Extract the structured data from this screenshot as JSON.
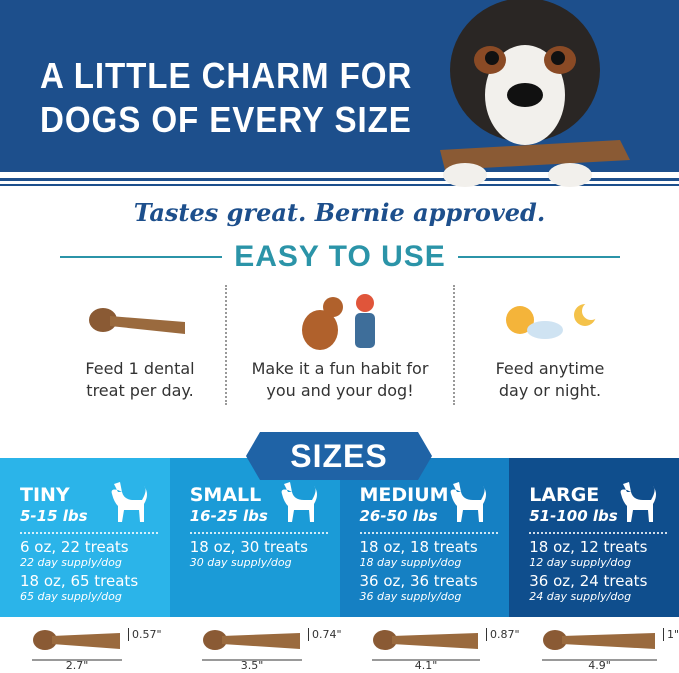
{
  "header": {
    "title_line1": "A LITTLE CHARM FOR",
    "title_line2": "DOGS OF EVERY SIZE"
  },
  "tagline": "Tastes great. Bernie approved.",
  "easy_to_use": {
    "heading": "EASY TO USE",
    "features": [
      {
        "icon": "dental-treat-icon",
        "line1": "Feed 1 dental",
        "line2": "treat per day."
      },
      {
        "icon": "dog-high-five-icon",
        "line1": "Make it a fun habit for",
        "line2": "you and your dog!"
      },
      {
        "icon": "sun-moon-icon",
        "line1": "Feed anytime",
        "line2": "day or night."
      }
    ]
  },
  "sizes": {
    "heading": "SIZES",
    "colors": [
      "#2bb4e9",
      "#1b9bd7",
      "#1580c3",
      "#0f4e8d"
    ],
    "panels": [
      {
        "name": "TINY",
        "weight": "5-15 lbs",
        "packs": [
          {
            "pack": "6 oz, 22 treats",
            "supply": "22 day supply/dog"
          },
          {
            "pack": "18 oz, 65 treats",
            "supply": "65 day supply/dog"
          }
        ],
        "treat_height": "0.57\"",
        "treat_length": "2.7\""
      },
      {
        "name": "SMALL",
        "weight": "16-25 lbs",
        "packs": [
          {
            "pack": "18 oz, 30 treats",
            "supply": "30 day supply/dog"
          }
        ],
        "treat_height": "0.74\"",
        "treat_length": "3.5\""
      },
      {
        "name": "MEDIUM",
        "weight": "26-50 lbs",
        "packs": [
          {
            "pack": "18 oz, 18 treats",
            "supply": "18 day supply/dog"
          },
          {
            "pack": "36 oz, 36 treats",
            "supply": "36 day supply/dog"
          }
        ],
        "treat_height": "0.87\"",
        "treat_length": "4.1\""
      },
      {
        "name": "LARGE",
        "weight": "51-100 lbs",
        "packs": [
          {
            "pack": "18 oz, 12 treats",
            "supply": "12 day supply/dog"
          },
          {
            "pack": "36 oz, 24 treats",
            "supply": "24 day supply/dog"
          }
        ],
        "treat_height": "1\"",
        "treat_length": "4.9\""
      }
    ]
  }
}
